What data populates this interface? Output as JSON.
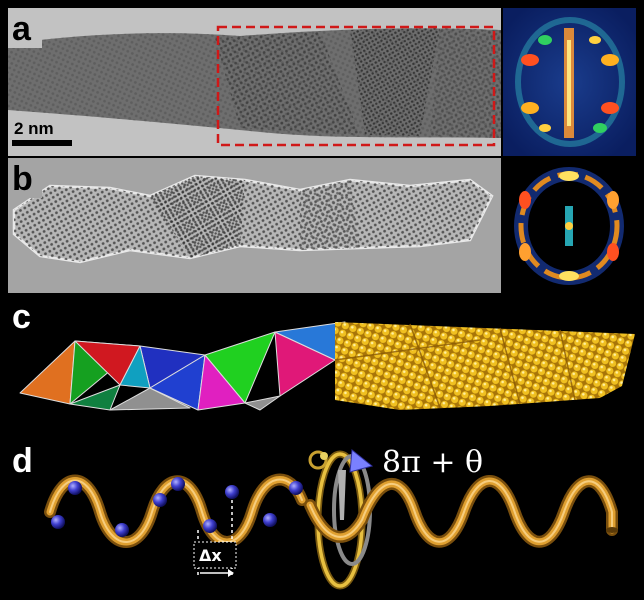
{
  "figure": {
    "panels": [
      {
        "label": "a",
        "scale_bar": "2 nm"
      },
      {
        "label": "b"
      },
      {
        "label": "c"
      },
      {
        "label": "d",
        "rotation_label": "8π + θ",
        "shift_label": "Δx"
      }
    ],
    "colors": {
      "roi_box": "#d01818",
      "nanowire_gold": "#e3b21a",
      "helix_tube": "#c98a1e",
      "atom_beads": "#4040d0",
      "facet_colors": [
        "#e07020",
        "#15a020",
        "#d01820",
        "#2030c0",
        "#10a0c0",
        "#e020c0",
        "#20d020",
        "#e01878",
        "#2878d8",
        "#909090"
      ]
    }
  }
}
